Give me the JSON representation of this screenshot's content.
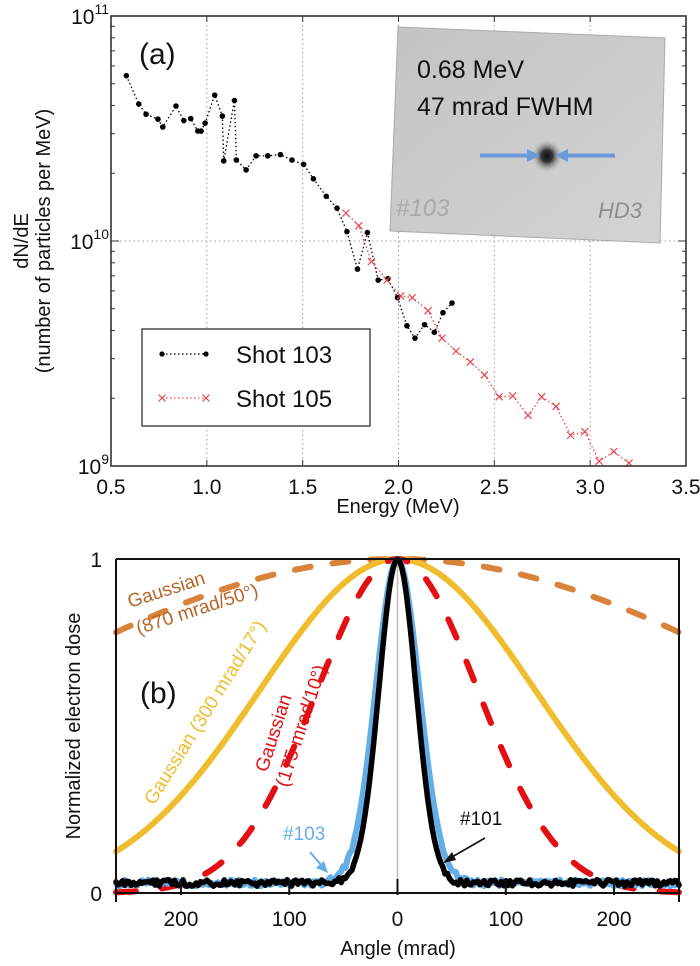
{
  "chart_data": [
    {
      "type": "line",
      "panel_label": "(a)",
      "xlabel": "Energy (MeV)",
      "ylabel": [
        "dN/dE",
        "(number of particles per MeV)"
      ],
      "xlim": [
        0.5,
        3.5
      ],
      "ylim": [
        1000000000.0,
        100000000000.0
      ],
      "yscale": "log",
      "grid": true,
      "xticks": [
        0.5,
        1.0,
        1.5,
        2.0,
        2.5,
        3.0,
        3.5
      ],
      "xtick_labels": [
        "0.5",
        "1.0",
        "1.5",
        "2.0",
        "2.5",
        "3.0",
        "3.5"
      ],
      "ytick_labels": [
        {
          "base": "10",
          "exp": "11"
        },
        {
          "base": "10",
          "exp": "10"
        },
        {
          "base": "10",
          "exp": "9"
        }
      ],
      "legend_position": "lower-left",
      "series": [
        {
          "name": "Shot 103",
          "color": "#000000",
          "marker": "dot",
          "x": [
            0.58,
            0.645,
            0.683,
            0.745,
            0.77,
            0.839,
            0.88,
            0.916,
            0.953,
            0.97,
            0.991,
            1.041,
            1.081,
            1.088,
            1.144,
            1.154,
            1.205,
            1.257,
            1.318,
            1.384,
            1.444,
            1.505,
            1.556,
            1.623,
            1.679,
            1.731,
            1.786,
            1.838,
            1.894,
            1.945,
            1.995,
            2.044,
            2.086,
            2.136,
            2.187,
            2.232,
            2.279
          ],
          "y": [
            54300000000.0,
            40600000000.0,
            36600000000.0,
            34800000000.0,
            32100000000.0,
            39800000000.0,
            34300000000.0,
            35000000000.0,
            30800000000.0,
            30800000000.0,
            33400000000.0,
            44500000000.0,
            35900000000.0,
            22700000000.0,
            42100000000.0,
            22900000000.0,
            20700000000.0,
            23900000000.0,
            23900000000.0,
            24200000000.0,
            22900000000.0,
            21900000000.0,
            18900000000.0,
            15800000000.0,
            14000000000.0,
            11000000000.0,
            7500000000.0,
            10900000000.0,
            6700000000.0,
            6800000000.0,
            5600000000.0,
            4200000000.0,
            3700000000.0,
            4250000000.0,
            3930000000.0,
            4800000000.0,
            5300000000.0
          ]
        },
        {
          "name": "Shot 105",
          "color": "#e8474c",
          "marker": "x",
          "x": [
            1.726,
            1.793,
            1.859,
            1.94,
            2.011,
            2.072,
            2.154,
            2.227,
            2.3,
            2.375,
            2.448,
            2.525,
            2.596,
            2.676,
            2.747,
            2.822,
            2.898,
            2.972,
            3.047,
            3.123,
            3.203
          ],
          "y": [
            13300000000.0,
            11700000000.0,
            8100000000.0,
            6700000000.0,
            5700000000.0,
            5600000000.0,
            4900000000.0,
            3700000000.0,
            3240000000.0,
            2900000000.0,
            2540000000.0,
            2030000000.0,
            2050000000.0,
            1680000000.0,
            2030000000.0,
            1840000000.0,
            1370000000.0,
            1420000000.0,
            1050000000.0,
            1160000000.0,
            1030000000.0
          ]
        }
      ],
      "inset": {
        "lines": [
          "0.68 MeV",
          "47 mrad FWHM"
        ],
        "film_marks": [
          "#103",
          "HD3"
        ],
        "arrow_color": "#6a9bd8"
      }
    },
    {
      "type": "line",
      "panel_label": "(b)",
      "xlabel": "Angle (mrad)",
      "ylabel": "Normalized electron dose",
      "xlim": [
        -260,
        260
      ],
      "ylim": [
        0,
        1
      ],
      "xticks": [
        -200,
        -100,
        0,
        100,
        200
      ],
      "xtick_labels": [
        "200",
        "100",
        "0",
        "100",
        "200"
      ],
      "yticks": [
        0,
        1
      ],
      "ytick_labels": [
        "0",
        "1"
      ],
      "series": [
        {
          "name": "Gaussian (870 mrad/50°)",
          "kind": "gaussian",
          "fwhm_mrad": 870,
          "color": "#d9823a",
          "style": "dashed",
          "label_lines": [
            "Gaussian",
            "(870 mrad/50°)"
          ],
          "label_color": "#b8652a"
        },
        {
          "name": "Gaussian (300 mrad/17°)",
          "kind": "gaussian",
          "fwhm_mrad": 300,
          "color": "#f0bd2e",
          "style": "solid",
          "label_lines": [
            "Gaussian (300 mrad/17°)"
          ],
          "label_color": "#f0bd2e"
        },
        {
          "name": "Gaussian (175 mrad/10°)",
          "kind": "gaussian",
          "fwhm_mrad": 175,
          "color": "#e30f13",
          "style": "dashed",
          "label_lines": [
            "Gaussian",
            "(175 mrad/10°)"
          ],
          "label_color": "#e30f13"
        },
        {
          "name": "#103",
          "kind": "measured",
          "fwhm_mrad": 47,
          "baseline": 0.03,
          "color": "#62aee8",
          "style": "solid",
          "label_lines": [
            "#103"
          ],
          "label_color": "#62aee8"
        },
        {
          "name": "#101",
          "kind": "measured",
          "fwhm_mrad": 40,
          "baseline": 0.03,
          "color": "#000000",
          "style": "solid",
          "label_lines": [
            "#101"
          ],
          "label_color": "#111111"
        }
      ]
    }
  ]
}
